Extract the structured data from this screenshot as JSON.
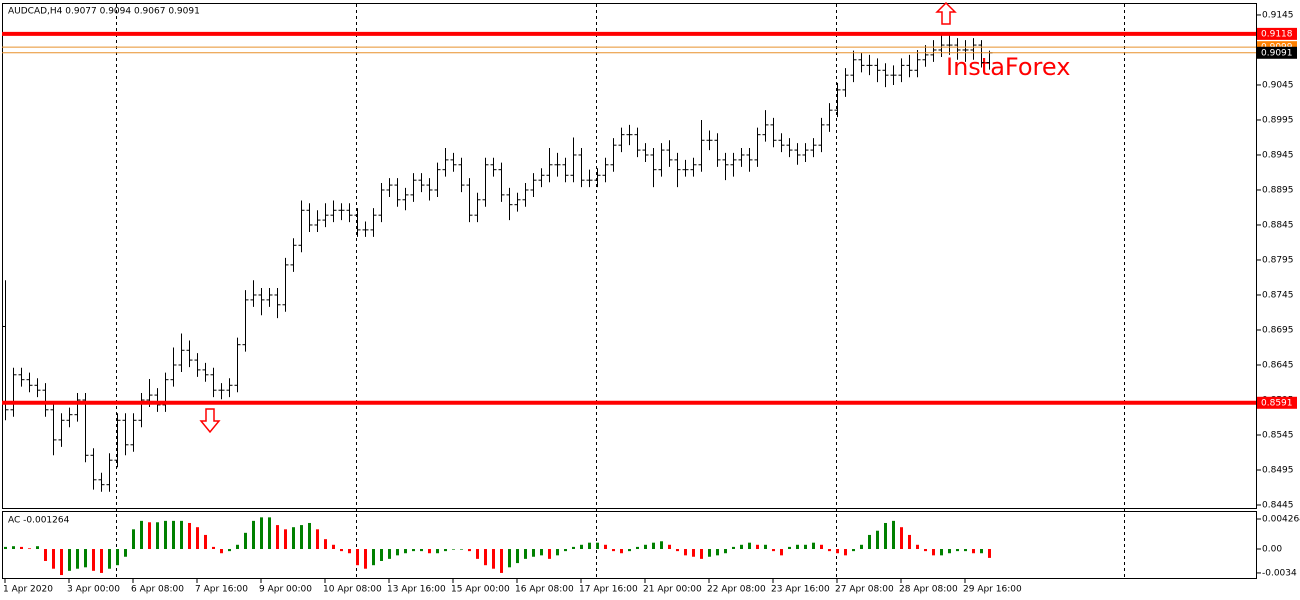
{
  "chart_data": [
    {
      "type": "ohlc",
      "title": "AUDCAD,H4  0.9077 0.9094 0.9067 0.9091",
      "watermark": "InstaForex",
      "color": "#000000",
      "categories": [
        "1 Apr 2020",
        null,
        null,
        null,
        null,
        null,
        null,
        null,
        "3 Apr 00:00",
        null,
        null,
        null,
        null,
        null,
        null,
        null,
        "6 Apr 08:00",
        null,
        null,
        null,
        null,
        null,
        null,
        null,
        "7 Apr 16:00",
        null,
        null,
        null,
        null,
        null,
        null,
        null,
        "9 Apr 00:00",
        null,
        null,
        null,
        null,
        null,
        null,
        null,
        "10 Apr 08:00",
        null,
        null,
        null,
        null,
        null,
        null,
        null,
        "13 Apr 16:00",
        null,
        null,
        null,
        null,
        null,
        null,
        null,
        "15 Apr 00:00",
        null,
        null,
        null,
        null,
        null,
        null,
        null,
        "16 Apr 08:00",
        null,
        null,
        null,
        null,
        null,
        null,
        null,
        "17 Apr 16:00",
        null,
        null,
        null,
        null,
        null,
        null,
        null,
        "21 Apr 00:00",
        null,
        null,
        null,
        null,
        null,
        null,
        null,
        "22 Apr 08:00",
        null,
        null,
        null,
        null,
        null,
        null,
        null,
        "23 Apr 16:00",
        null,
        null,
        null,
        null,
        null,
        null,
        null,
        "27 Apr 08:00",
        null,
        null,
        null,
        null,
        null,
        null,
        null,
        "28 Apr 08:00",
        null,
        null,
        null,
        null,
        null,
        null,
        null,
        "29 Apr 16:00",
        null,
        null,
        null
      ],
      "open": [
        0.87,
        0.8581,
        0.8631,
        0.8624,
        0.8616,
        0.8609,
        0.8581,
        0.8538,
        0.8566,
        0.8574,
        0.8595,
        0.8516,
        0.8481,
        0.8474,
        0.8509,
        0.8566,
        0.8531,
        0.8566,
        0.8595,
        0.8602,
        0.8588,
        0.8624,
        0.8645,
        0.8666,
        0.8652,
        0.8638,
        0.8631,
        0.8609,
        0.8609,
        0.8616,
        0.8674,
        0.8738,
        0.8745,
        0.8738,
        0.8745,
        0.8731,
        0.8788,
        0.8816,
        0.8866,
        0.8845,
        0.8852,
        0.8859,
        0.8866,
        0.8866,
        0.8859,
        0.8838,
        0.8838,
        0.8859,
        0.8895,
        0.8902,
        0.8881,
        0.8888,
        0.8909,
        0.8902,
        0.8895,
        0.8924,
        0.8938,
        0.8931,
        0.8902,
        0.8859,
        0.8881,
        0.8931,
        0.8924,
        0.8888,
        0.8874,
        0.8881,
        0.8895,
        0.8909,
        0.8916,
        0.8931,
        0.8931,
        0.8916,
        0.8945,
        0.8909,
        0.8909,
        0.8916,
        0.8931,
        0.8959,
        0.8974,
        0.8974,
        0.8952,
        0.8945,
        0.8924,
        0.8952,
        0.8938,
        0.8924,
        0.8924,
        0.8931,
        0.8966,
        0.8966,
        0.8938,
        0.8931,
        0.8938,
        0.8945,
        0.8938,
        0.8974,
        0.8988,
        0.8966,
        0.8959,
        0.8952,
        0.8945,
        0.8952,
        0.8959,
        0.8988,
        0.9009,
        0.9038,
        0.9059,
        0.9081,
        0.9073,
        0.9073,
        0.9066,
        0.9059,
        0.9059,
        0.9073,
        0.9066,
        0.9081,
        0.9088,
        0.9095,
        0.9102,
        0.9102,
        0.9095,
        0.9095,
        0.9102,
        0.9077
      ],
      "high": [
        0.8766,
        0.8641,
        0.8641,
        0.8634,
        0.8626,
        0.8619,
        0.8591,
        0.8576,
        0.8584,
        0.8605,
        0.8605,
        0.8526,
        0.8491,
        0.8519,
        0.8576,
        0.8576,
        0.8576,
        0.8605,
        0.8625,
        0.8612,
        0.8634,
        0.867,
        0.869,
        0.868,
        0.8662,
        0.8648,
        0.8641,
        0.8619,
        0.8626,
        0.8684,
        0.8752,
        0.8766,
        0.8755,
        0.8755,
        0.8755,
        0.8798,
        0.8826,
        0.888,
        0.8876,
        0.8866,
        0.8876,
        0.888,
        0.8876,
        0.8876,
        0.8869,
        0.885,
        0.8869,
        0.8905,
        0.8912,
        0.8912,
        0.8898,
        0.8919,
        0.8919,
        0.8912,
        0.8934,
        0.8955,
        0.8948,
        0.8941,
        0.8912,
        0.8891,
        0.8941,
        0.8941,
        0.8934,
        0.8898,
        0.8891,
        0.8905,
        0.8919,
        0.8926,
        0.8955,
        0.8948,
        0.8941,
        0.897,
        0.8955,
        0.8924,
        0.8926,
        0.8941,
        0.8969,
        0.8984,
        0.8988,
        0.8984,
        0.8962,
        0.8955,
        0.8962,
        0.8966,
        0.8948,
        0.8938,
        0.8941,
        0.8995,
        0.898,
        0.8976,
        0.8948,
        0.8948,
        0.8955,
        0.8955,
        0.8984,
        0.9009,
        0.8998,
        0.8976,
        0.8969,
        0.8962,
        0.8962,
        0.8969,
        0.8998,
        0.9019,
        0.9048,
        0.9069,
        0.9094,
        0.9091,
        0.9088,
        0.9083,
        0.9076,
        0.9073,
        0.9083,
        0.9088,
        0.9095,
        0.9102,
        0.9109,
        0.9118,
        0.9116,
        0.9112,
        0.9109,
        0.9112,
        0.9109,
        0.9094
      ],
      "low": [
        0.8566,
        0.8571,
        0.8614,
        0.8606,
        0.8599,
        0.8571,
        0.8516,
        0.8528,
        0.8556,
        0.8564,
        0.8506,
        0.8467,
        0.8464,
        0.8464,
        0.8499,
        0.8516,
        0.8521,
        0.8556,
        0.8585,
        0.8578,
        0.8578,
        0.8614,
        0.8635,
        0.8642,
        0.8628,
        0.8621,
        0.8599,
        0.8596,
        0.8599,
        0.8606,
        0.8664,
        0.8728,
        0.8716,
        0.8728,
        0.8712,
        0.8721,
        0.8778,
        0.8806,
        0.8835,
        0.8835,
        0.8842,
        0.8849,
        0.8852,
        0.8849,
        0.8828,
        0.8828,
        0.8828,
        0.8849,
        0.8885,
        0.8871,
        0.8866,
        0.8878,
        0.8892,
        0.888,
        0.8885,
        0.8914,
        0.8921,
        0.8892,
        0.8849,
        0.8849,
        0.8871,
        0.8914,
        0.8878,
        0.8852,
        0.8864,
        0.8871,
        0.8885,
        0.8899,
        0.8906,
        0.8914,
        0.8906,
        0.8906,
        0.8899,
        0.8899,
        0.8899,
        0.8906,
        0.8921,
        0.8949,
        0.8959,
        0.8942,
        0.8935,
        0.8899,
        0.8914,
        0.8928,
        0.8899,
        0.8914,
        0.8914,
        0.8921,
        0.8952,
        0.8928,
        0.8909,
        0.8914,
        0.8928,
        0.8921,
        0.8928,
        0.8964,
        0.8956,
        0.8949,
        0.8942,
        0.8931,
        0.8935,
        0.8942,
        0.8949,
        0.8978,
        0.8999,
        0.9028,
        0.9049,
        0.9063,
        0.9059,
        0.9049,
        0.9042,
        0.9045,
        0.9049,
        0.9056,
        0.9056,
        0.9071,
        0.9078,
        0.9085,
        0.9088,
        0.9081,
        0.9078,
        0.9081,
        0.907,
        0.9067
      ],
      "close": [
        0.8581,
        0.8631,
        0.8624,
        0.8616,
        0.8609,
        0.8581,
        0.8538,
        0.8566,
        0.8574,
        0.8595,
        0.8516,
        0.8481,
        0.8474,
        0.8509,
        0.8566,
        0.8531,
        0.8566,
        0.8595,
        0.8602,
        0.8588,
        0.8624,
        0.8645,
        0.8666,
        0.8652,
        0.8638,
        0.8631,
        0.8609,
        0.8609,
        0.8616,
        0.8674,
        0.8738,
        0.8745,
        0.8738,
        0.8745,
        0.8731,
        0.8788,
        0.8816,
        0.8866,
        0.8845,
        0.8852,
        0.8859,
        0.8866,
        0.8866,
        0.8859,
        0.8838,
        0.8838,
        0.8859,
        0.8895,
        0.8902,
        0.8881,
        0.8888,
        0.8909,
        0.8902,
        0.8895,
        0.8924,
        0.8938,
        0.8931,
        0.8902,
        0.8859,
        0.8881,
        0.8931,
        0.8924,
        0.8888,
        0.8874,
        0.8881,
        0.8895,
        0.8909,
        0.8916,
        0.8931,
        0.8931,
        0.8916,
        0.8945,
        0.8909,
        0.8909,
        0.8916,
        0.8931,
        0.8959,
        0.8974,
        0.8974,
        0.8952,
        0.8945,
        0.8924,
        0.8952,
        0.8938,
        0.8924,
        0.8924,
        0.8931,
        0.8966,
        0.8966,
        0.8938,
        0.8931,
        0.8938,
        0.8945,
        0.8938,
        0.8974,
        0.8988,
        0.8966,
        0.8959,
        0.8952,
        0.8945,
        0.8952,
        0.8959,
        0.8988,
        0.9009,
        0.9038,
        0.9059,
        0.9081,
        0.9073,
        0.9073,
        0.9066,
        0.9059,
        0.9059,
        0.9073,
        0.9066,
        0.9081,
        0.9088,
        0.9095,
        0.9102,
        0.9102,
        0.9095,
        0.9095,
        0.9102,
        0.9077,
        0.9091
      ],
      "ylim": [
        0.84407,
        0.91621
      ],
      "yticks": [
        0.9145,
        0.9095,
        0.9045,
        0.8995,
        0.8945,
        0.8895,
        0.8845,
        0.8795,
        0.8745,
        0.8695,
        0.8645,
        0.8595,
        0.8545,
        0.8495,
        0.8445
      ],
      "levels": [
        {
          "value": 0.9118,
          "color": "#ff0000"
        },
        {
          "value": 0.8591,
          "color": "#ff0000"
        }
      ],
      "price_lines": {
        "line_color": "#e8902c",
        "lines": [
          {
            "value": 0.9099,
            "label_color": "#ff8000"
          },
          {
            "value": 0.9091,
            "label_color": "#000000"
          }
        ]
      }
    },
    {
      "type": "bar",
      "title": "AC -0.001264",
      "up_color": "#008000",
      "down_color": "#ff0000",
      "values": [
        0.0003,
        0.0004,
        0.0003,
        0.0001,
        0.0004,
        -0.0017,
        -0.0028,
        -0.0037,
        -0.0031,
        -0.0028,
        -0.0026,
        -0.0031,
        -0.0034,
        -0.0028,
        -0.0023,
        -0.0011,
        0.0028,
        0.004,
        0.0038,
        0.0038,
        0.004,
        0.004,
        0.004,
        0.0037,
        0.0031,
        0.002,
        0.0003,
        -0.0006,
        -0.0003,
        0.0006,
        0.0023,
        0.004,
        0.0045,
        0.0045,
        0.0034,
        0.0028,
        0.0031,
        0.0034,
        0.0037,
        0.0028,
        0.0014,
        0.0006,
        -0.0003,
        -0.0006,
        -0.0023,
        -0.0028,
        -0.0023,
        -0.0017,
        -0.0014,
        -0.0009,
        -0.0006,
        -0.0003,
        -0.0003,
        -0.0006,
        -0.0006,
        -0.0003,
        0,
        0,
        -0.0003,
        -0.0014,
        -0.0023,
        -0.0028,
        -0.0034,
        -0.0026,
        -0.002,
        -0.0014,
        -0.0011,
        -0.0009,
        -0.0014,
        -0.0009,
        -0.0003,
        0.0003,
        0.0006,
        0.0009,
        0.0009,
        0.0006,
        -0.0003,
        -0.0006,
        -0.0003,
        0.0003,
        0.0006,
        0.0009,
        0.0011,
        0.0006,
        -0.0003,
        -0.0009,
        -0.0011,
        -0.0014,
        -0.0011,
        -0.0009,
        -0.0006,
        0.0003,
        0.0006,
        0.0009,
        0.0006,
        0.0006,
        -0.0003,
        -0.0009,
        0.0003,
        0.0006,
        0.0006,
        0.0009,
        0.0006,
        -0.0003,
        -0.0006,
        -0.0009,
        -0.0003,
        0.0006,
        0.002,
        0.0026,
        0.0037,
        0.004,
        0.0031,
        0.002,
        0.0006,
        -0.0003,
        -0.0009,
        -0.0009,
        -0.0006,
        -0.0003,
        -0.0003,
        -0.0006,
        -0.0006,
        -0.001264
      ],
      "ylim": [
        -0.00412,
        0.00526
      ],
      "yticks": [
        0.004264,
        {
          "value": 0,
          "label": "0.00"
        },
        -0.0034
      ]
    }
  ]
}
